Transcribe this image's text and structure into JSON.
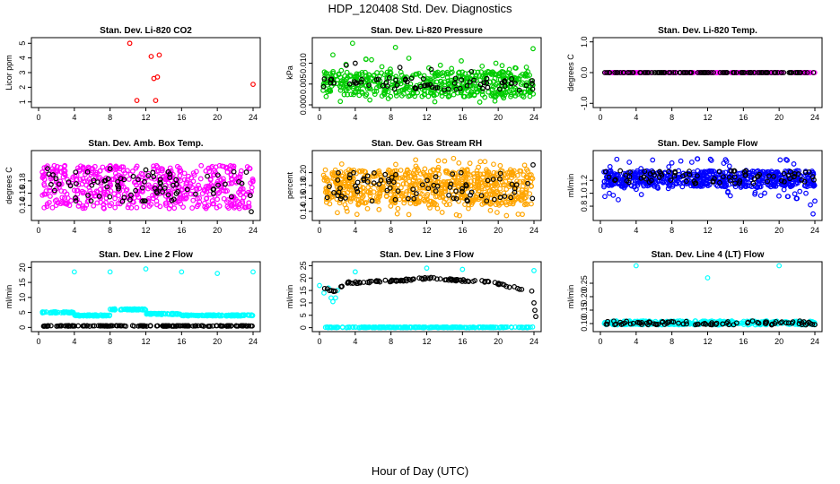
{
  "title": "HDP_120408  Std. Dev. Diagnostics",
  "xlabel": "Hour of Day (UTC)",
  "chart_data": [
    {
      "type": "scatter",
      "title": "Stan. Dev. Li-820 CO2",
      "ylabel": "Licor ppm",
      "xlim": [
        0,
        24
      ],
      "ylim": [
        0.8,
        5.2
      ],
      "xticks": [
        "0",
        "4",
        "8",
        "12",
        "16",
        "20",
        "24"
      ],
      "yticks": [
        "1",
        "2",
        "3",
        "4",
        "5"
      ],
      "ytick_values": [
        1,
        2,
        3,
        4,
        5
      ],
      "series": [
        {
          "color": "#ff0000",
          "band": [
            0.55,
            0.72
          ],
          "density": 300,
          "x": [
            10.2,
            11,
            12.6,
            12.9,
            13.1,
            13.5,
            13.3,
            24
          ],
          "y": [
            5.0,
            1.1,
            4.1,
            2.6,
            1.1,
            4.2,
            2.7,
            2.2
          ]
        },
        {
          "color": "#000000",
          "band": [
            0.55,
            0.68
          ],
          "density": 90,
          "x": [],
          "y": []
        }
      ]
    },
    {
      "type": "scatter",
      "title": "Stan. Dev. Li-820 Pressure",
      "ylabel": "kPa",
      "xlim": [
        0,
        24
      ],
      "ylim": [
        0,
        0.0155
      ],
      "xticks": [
        "0",
        "4",
        "8",
        "12",
        "16",
        "20",
        "24"
      ],
      "yticks": [
        "0.000",
        "0.005",
        "0.010"
      ],
      "ytick_values": [
        0,
        0.005,
        0.01
      ],
      "series": [
        {
          "color": "#00cc00",
          "band": [
            0.002,
            0.008
          ],
          "density": 520,
          "x": [
            3.7,
            8.5,
            1.5,
            5.2,
            10,
            23.9
          ],
          "y": [
            0.0148,
            0.0138,
            0.012,
            0.011,
            0.0112,
            0.0135
          ],
          "scatter_lo": 0.0005,
          "scatter_hi": 0.0112
        },
        {
          "color": "#000000",
          "band": [
            0.0035,
            0.0065
          ],
          "density": 70,
          "x": [
            3,
            4,
            9,
            12.5,
            17
          ],
          "y": [
            0.0095,
            0.01,
            0.009,
            0.0085,
            0.008
          ]
        }
      ]
    },
    {
      "type": "scatter",
      "title": "Stan. Dev. Li-820 Temp.",
      "ylabel": "degrees C",
      "xlim": [
        0,
        24
      ],
      "ylim": [
        -1.05,
        1.05
      ],
      "xticks": [
        "0",
        "4",
        "8",
        "12",
        "16",
        "20",
        "24"
      ],
      "yticks": [
        "-1.0",
        "0.0",
        "1.0"
      ],
      "ytick_values": [
        -1,
        0,
        1
      ],
      "series": [
        {
          "color": "#ff00ff",
          "band": [
            0,
            0
          ],
          "density": 230,
          "x": [],
          "y": []
        },
        {
          "color": "#000000",
          "band": [
            0,
            0
          ],
          "density": 120,
          "x": [],
          "y": []
        }
      ]
    },
    {
      "type": "scatter",
      "title": "Stan. Dev. Amb. Box Temp.",
      "ylabel": "degrees C",
      "xlim": [
        0,
        24
      ],
      "ylim": [
        0.12,
        0.225
      ],
      "xticks": [
        "0",
        "4",
        "8",
        "12",
        "16",
        "20",
        "24"
      ],
      "yticks": [
        "0.14",
        "0.16",
        "0.18"
      ],
      "ytick_values": [
        0.14,
        0.16,
        0.18
      ],
      "series": [
        {
          "color": "#ff00ff",
          "band": [
            0.135,
            0.205
          ],
          "density": 560,
          "x": [],
          "y": []
        },
        {
          "color": "#000000",
          "band": [
            0.145,
            0.195
          ],
          "density": 80,
          "x": [
            1,
            8,
            12,
            23.8
          ],
          "y": [
            0.2,
            0.2,
            0.198,
            0.13
          ]
        }
      ]
    },
    {
      "type": "scatter",
      "title": "Stan. Dev. Gas Stream RH",
      "ylabel": "percent",
      "xlim": [
        0,
        24
      ],
      "ylim": [
        0.13,
        0.23
      ],
      "xticks": [
        "0",
        "4",
        "8",
        "12",
        "16",
        "20",
        "24"
      ],
      "yticks": [
        "0.14",
        "0.16",
        "0.18",
        "0.20"
      ],
      "ytick_values": [
        0.14,
        0.16,
        0.18,
        0.2
      ],
      "series": [
        {
          "color": "#ffa500",
          "band": [
            0.15,
            0.205
          ],
          "density": 720,
          "x": [
            15,
            14,
            18,
            2,
            10
          ],
          "y": [
            0.222,
            0.218,
            0.217,
            0.138,
            0.135
          ],
          "scatter_lo": 0.133,
          "scatter_hi": 0.22
        },
        {
          "color": "#000000",
          "band": [
            0.155,
            0.2
          ],
          "density": 80,
          "x": [
            23.9
          ],
          "y": [
            0.212
          ]
        }
      ]
    },
    {
      "type": "scatter",
      "title": "Stan. Dev. Sample Flow",
      "ylabel": "ml/min",
      "xlim": [
        0,
        24
      ],
      "ylim": [
        0.62,
        1.62
      ],
      "xticks": [
        "0",
        "4",
        "8",
        "12",
        "16",
        "20",
        "24"
      ],
      "yticks": [
        "0.8",
        "1.0",
        "1.2"
      ],
      "ytick_values": [
        0.8,
        1.0,
        1.2
      ],
      "series": [
        {
          "color": "#0000ff",
          "band": [
            1.1,
            1.35
          ],
          "density": 620,
          "x": [
            0.5,
            1,
            2,
            8,
            9,
            14,
            21,
            22,
            23,
            23.5,
            23.8,
            24
          ],
          "y": [
            0.95,
            1.0,
            0.9,
            1.47,
            1.5,
            1.52,
            0.95,
            0.92,
            1.0,
            0.82,
            0.68,
            0.88
          ],
          "scatter_lo": 0.9,
          "scatter_hi": 1.55
        },
        {
          "color": "#000000",
          "band": [
            1.15,
            1.35
          ],
          "density": 80,
          "x": [],
          "y": []
        }
      ]
    },
    {
      "type": "scatter",
      "title": "Stan. Dev. Line 2 Flow",
      "ylabel": "ml/min",
      "xlim": [
        0,
        24
      ],
      "ylim": [
        -0.5,
        21
      ],
      "xticks": [
        "0",
        "4",
        "8",
        "12",
        "16",
        "20",
        "24"
      ],
      "yticks": [
        "0",
        "5",
        "10",
        "15",
        "20"
      ],
      "ytick_values": [
        0,
        5,
        10,
        15,
        20
      ],
      "series": [
        {
          "color": "#00ffff",
          "x": [
            4,
            8,
            12,
            16,
            20,
            24
          ],
          "y": [
            18.5,
            18.5,
            19.5,
            18.5,
            18,
            18.5
          ],
          "levels": [
            [
              0,
              4,
              5
            ],
            [
              4,
              8,
              4
            ],
            [
              8,
              12,
              6
            ],
            [
              12,
              16,
              4.5
            ],
            [
              16,
              24,
              4
            ]
          ],
          "density": 340
        },
        {
          "color": "#000000",
          "band": [
            0.4,
            0.6
          ],
          "density": 170,
          "x": [],
          "y": []
        }
      ]
    },
    {
      "type": "scatter",
      "title": "Stan. Dev. Line 3 Flow",
      "ylabel": "ml/min",
      "xlim": [
        0,
        24
      ],
      "ylim": [
        -0.5,
        25.5
      ],
      "xticks": [
        "0",
        "4",
        "8",
        "12",
        "16",
        "20",
        "24"
      ],
      "yticks": [
        "0",
        "5",
        "10",
        "15",
        "20",
        "25"
      ],
      "ytick_values": [
        0,
        5,
        10,
        15,
        20,
        25
      ],
      "series": [
        {
          "color": "#00ffff",
          "band": [
            0,
            0.3
          ],
          "density": 240,
          "x": [
            0,
            0.5,
            1,
            1.3,
            1.5,
            1.8,
            2,
            4,
            12,
            16,
            24
          ],
          "y": [
            17,
            14,
            16,
            12,
            10.5,
            12,
            15,
            22.5,
            24,
            23.5,
            23
          ]
        },
        {
          "color": "#000000",
          "curve": [
            [
              0,
              17
            ],
            [
              1.5,
              14.5
            ],
            [
              3,
              18
            ],
            [
              6,
              18.5
            ],
            [
              9,
              19
            ],
            [
              12,
              20
            ],
            [
              16,
              19
            ],
            [
              19,
              18.5
            ],
            [
              22,
              16
            ],
            [
              24,
              15
            ]
          ],
          "density": 110,
          "x": [
            24,
            24.1,
            24.2
          ],
          "y": [
            10,
            7,
            4.5
          ]
        }
      ]
    },
    {
      "type": "scatter",
      "title": "Stan. Dev. Line 4 (LT) Flow",
      "ylabel": "ml/min",
      "xlim": [
        0,
        24
      ],
      "ylim": [
        0.08,
        0.32
      ],
      "xticks": [
        "0",
        "4",
        "8",
        "12",
        "16",
        "20",
        "24"
      ],
      "yticks": [
        "0.10",
        "0.15",
        "0.20",
        "0.25"
      ],
      "ytick_values": [
        0.1,
        0.15,
        0.2,
        0.25
      ],
      "series": [
        {
          "color": "#00ffff",
          "band": [
            0.095,
            0.11
          ],
          "density": 330,
          "x": [
            4,
            12,
            20
          ],
          "y": [
            0.315,
            0.27,
            0.315
          ]
        },
        {
          "color": "#000000",
          "band": [
            0.095,
            0.11
          ],
          "density": 90,
          "x": [],
          "y": []
        }
      ]
    }
  ]
}
